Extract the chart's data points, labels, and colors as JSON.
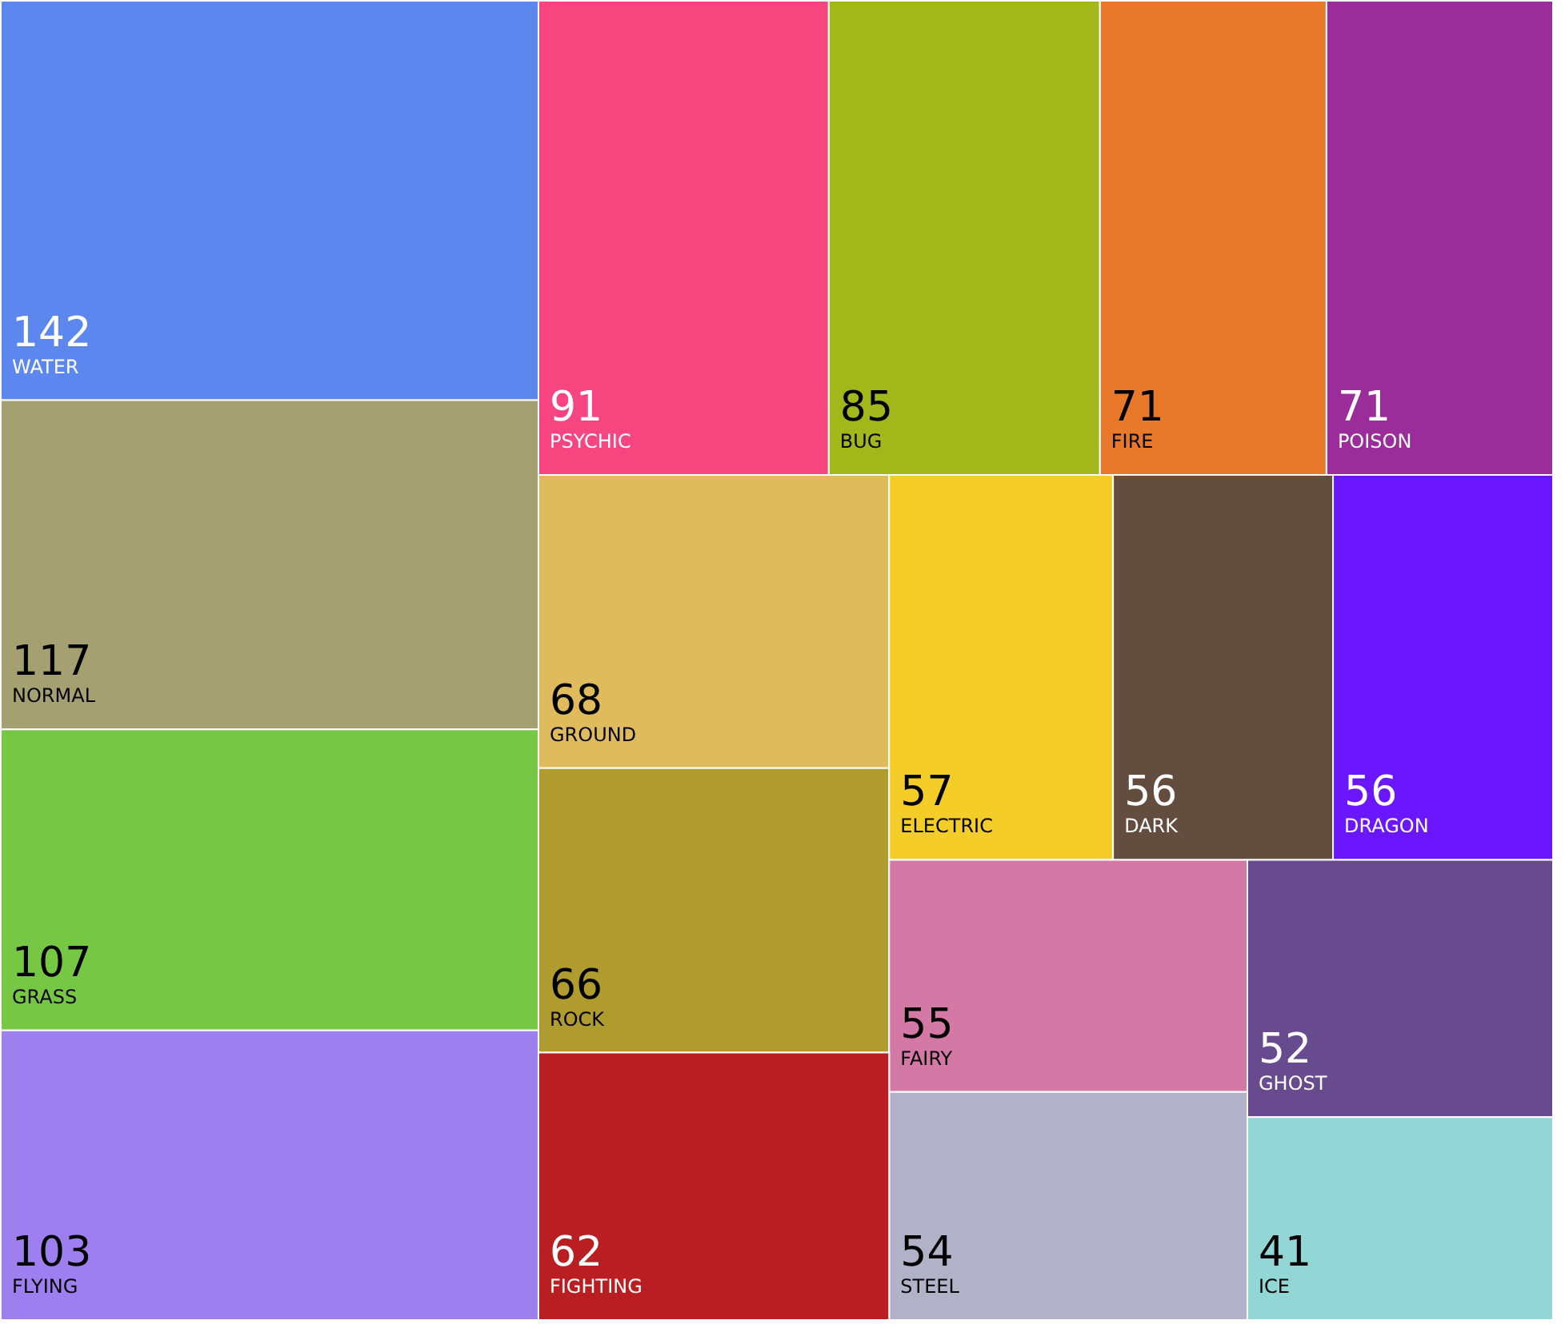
{
  "chart_data": {
    "type": "other",
    "categories": [
      "WATER",
      "NORMAL",
      "GRASS",
      "FLYING",
      "PSYCHIC",
      "BUG",
      "FIRE",
      "POISON",
      "GROUND",
      "ROCK",
      "ELECTRIC",
      "DARK",
      "DRAGON",
      "FAIRY",
      "STEEL",
      "GHOST",
      "ICE",
      "FIGHTING"
    ],
    "values": [
      142,
      117,
      107,
      103,
      91,
      85,
      71,
      71,
      68,
      66,
      57,
      56,
      56,
      55,
      54,
      52,
      41,
      62
    ],
    "colors": [
      "#5b87ee",
      "#a4a072",
      "#76c744",
      "#9d7ff0",
      "#f6457f",
      "#a2b81a",
      "#e8792b",
      "#9a2d99",
      "#dfbb5e",
      "#af9b2e",
      "#f4cd28",
      "#634d3f",
      "#6a16fe",
      "#d479a6",
      "#b1b2c8",
      "#684b8f",
      "#92d6d5",
      "#b91f22"
    ],
    "data_labels": true
  }
}
